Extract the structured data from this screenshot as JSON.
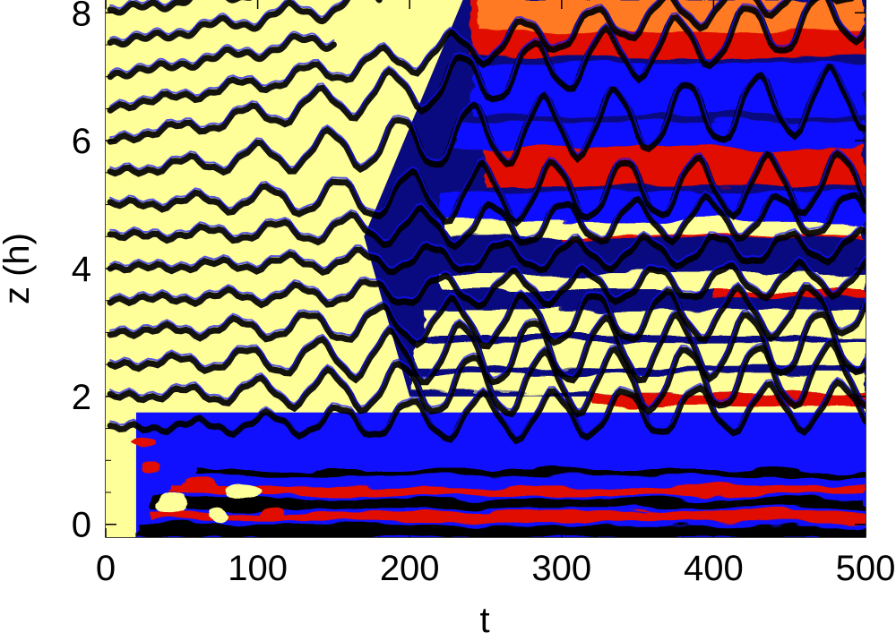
{
  "chart_data": {
    "type": "heatmap",
    "title": "",
    "xlabel": "t",
    "ylabel": "z (h)",
    "xlim": [
      0,
      500
    ],
    "ylim": [
      -0.2,
      8.2
    ],
    "x_ticks": [
      0,
      100,
      200,
      300,
      400,
      500
    ],
    "y_ticks": [
      0,
      2,
      4,
      6,
      8
    ],
    "x_tick_labels": [
      "0",
      "100",
      "200",
      "300",
      "400",
      "500"
    ],
    "y_tick_labels": [
      "0",
      "2",
      "4",
      "6",
      "8"
    ],
    "colormap": {
      "low": "#000000",
      "dark_blue": "#0a0a80",
      "blue": "#1010ff",
      "red": "#e01000",
      "orange": "#ff7a20",
      "high": "#ffff99"
    },
    "grid": false,
    "legend": "none"
  }
}
